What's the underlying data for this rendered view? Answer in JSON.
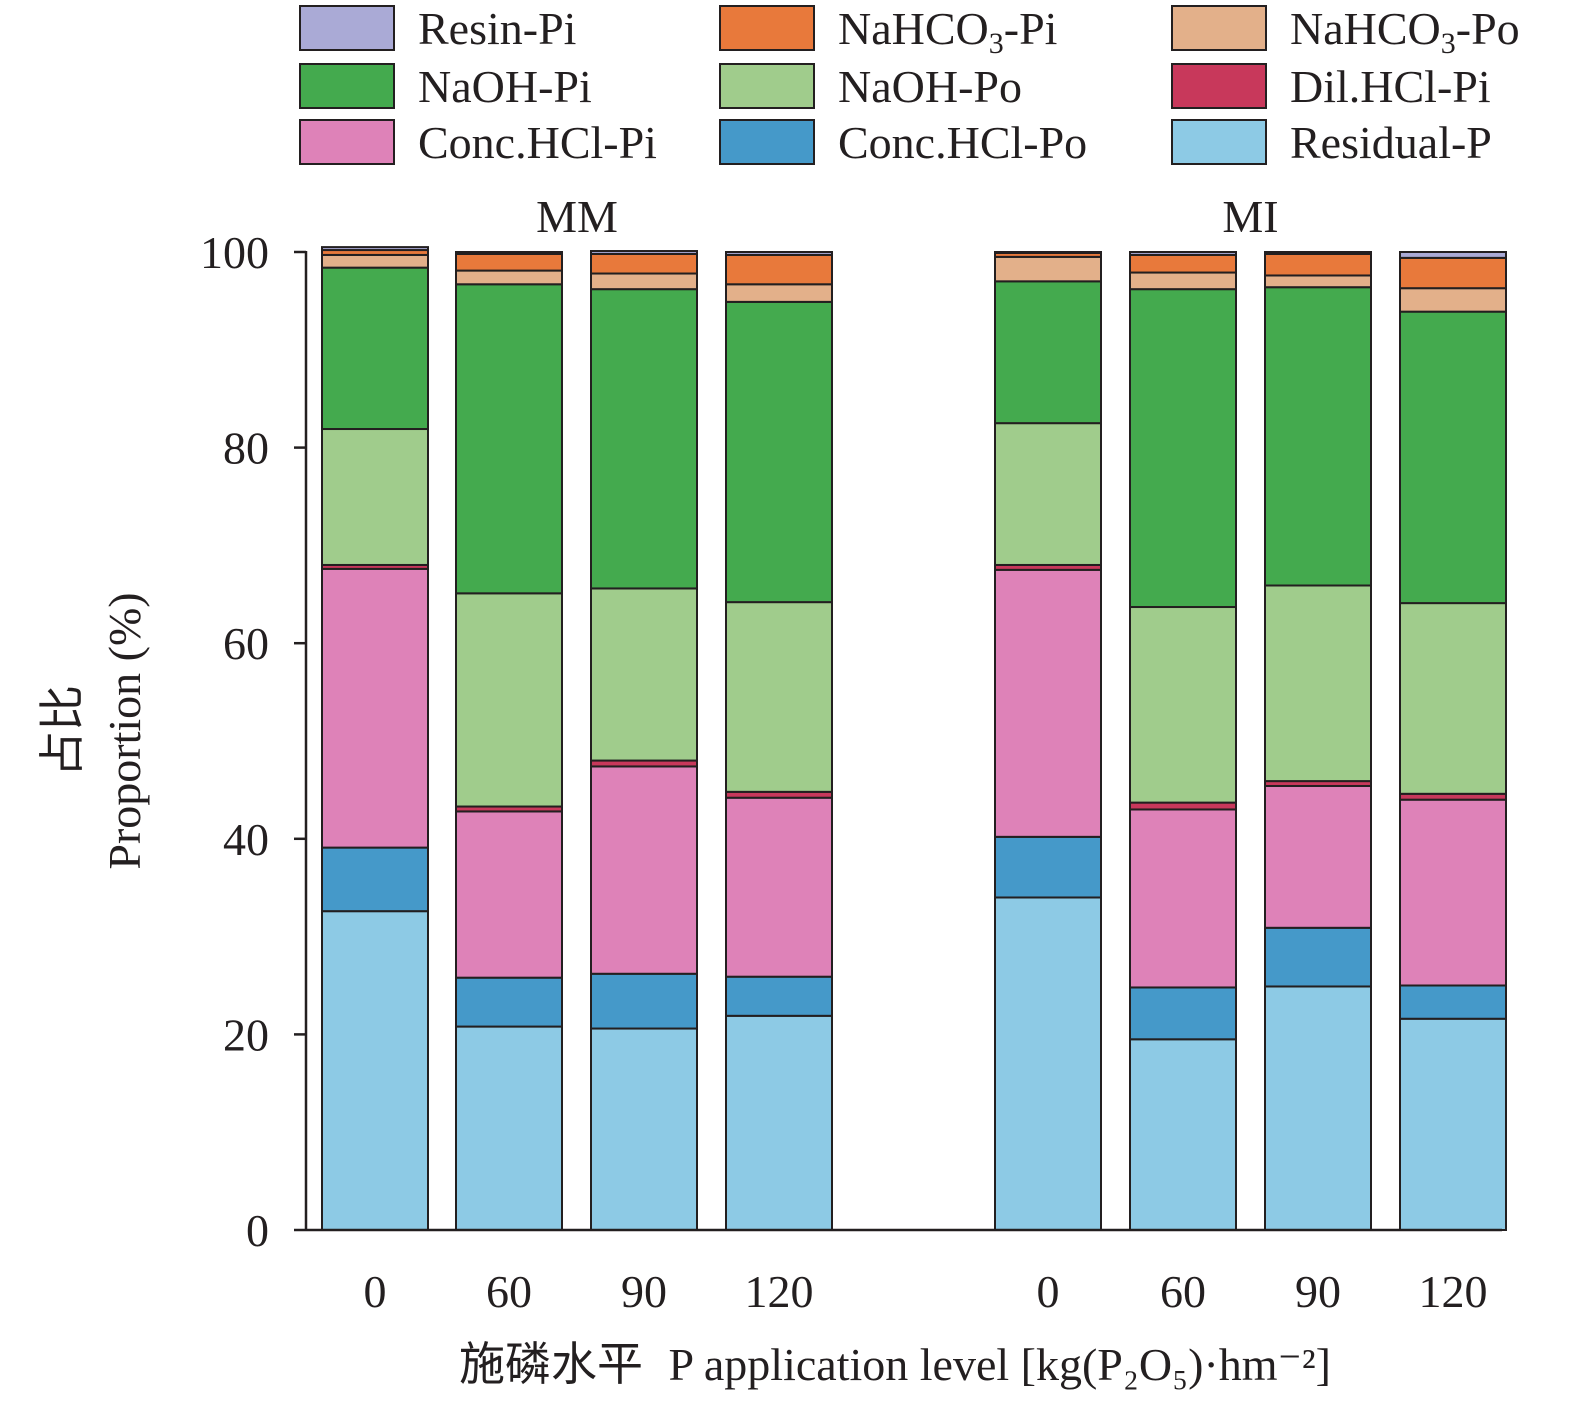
{
  "chart_data": {
    "type": "bar",
    "stacked": true,
    "title": "",
    "ylabel_cn": "占比",
    "ylabel_en": "Proportion (%)",
    "xlabel_cn": "施磷水平",
    "xlabel_en": "P application level [kg(P₂O₅)·hm⁻²]",
    "ylim": [
      0,
      100
    ],
    "yticks": [
      0,
      20,
      40,
      60,
      80,
      100
    ],
    "legend_position": "top",
    "groups": [
      {
        "name": "MM",
        "categories": [
          "0",
          "60",
          "90",
          "120"
        ]
      },
      {
        "name": "MI",
        "categories": [
          "0",
          "60",
          "90",
          "120"
        ]
      }
    ],
    "series": [
      {
        "name": "Residual-P",
        "color": "#8dcae5",
        "values": [
          32.6,
          20.8,
          20.6,
          21.9,
          34.0,
          19.5,
          24.9,
          21.6
        ]
      },
      {
        "name": "Conc.HCl-Po",
        "color": "#4599c9",
        "values": [
          6.5,
          5.0,
          5.6,
          4.0,
          6.2,
          5.3,
          6.0,
          3.4
        ]
      },
      {
        "name": "Conc.HCl-Pi",
        "color": "#de82b8",
        "values": [
          28.5,
          17.0,
          21.2,
          18.3,
          27.3,
          18.2,
          14.5,
          19.0
        ]
      },
      {
        "name": "Dil.HCl-Pi",
        "color": "#c8385b",
        "values": [
          0.4,
          0.5,
          0.6,
          0.6,
          0.5,
          0.7,
          0.5,
          0.6
        ]
      },
      {
        "name": "NaOH-Po",
        "color": "#a0cc8c",
        "values": [
          13.9,
          21.8,
          17.6,
          19.4,
          14.5,
          20.0,
          20.0,
          19.5
        ]
      },
      {
        "name": "NaOH-Pi",
        "color": "#44aa4e",
        "values": [
          16.5,
          31.6,
          30.6,
          30.7,
          14.5,
          32.5,
          30.5,
          29.8
        ]
      },
      {
        "name": "NaHCO₃-Po",
        "color": "#e3b08a",
        "values": [
          1.3,
          1.4,
          1.6,
          1.8,
          2.5,
          1.7,
          1.2,
          2.4
        ]
      },
      {
        "name": "NaHCO₃-Pi",
        "color": "#e8793b",
        "values": [
          0.5,
          1.7,
          2.0,
          3.0,
          0.4,
          1.8,
          2.2,
          3.1
        ]
      },
      {
        "name": "Resin-Pi",
        "color": "#aaaad6",
        "values": [
          0.3,
          0.2,
          0.3,
          0.3,
          0.1,
          0.3,
          0.2,
          0.6
        ]
      }
    ],
    "legend_order": [
      "Resin-Pi",
      "NaHCO₃-Pi",
      "NaHCO₃-Po",
      "NaOH-Pi",
      "NaOH-Po",
      "Dil.HCl-Pi",
      "Conc.HCl-Pi",
      "Conc.HCl-Po",
      "Residual-P"
    ]
  }
}
